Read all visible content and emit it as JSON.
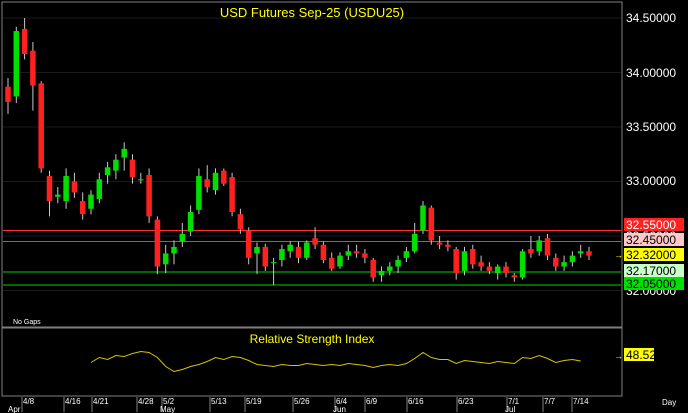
{
  "colors": {
    "background": "#000000",
    "frame": "#7f7f7f",
    "up": "#00e000",
    "down": "#ff2020",
    "wick": "#c8c8c8",
    "title": "#ffff00",
    "rsi_line": "#d7c300",
    "resistance_line": "#ff3333",
    "support_line": "#00d000"
  },
  "header": {
    "title": "USD Futures Sep-25 (USDU25)",
    "note": "No Gaps"
  },
  "price_axis": {
    "ticks": [
      "34.50000",
      "34.00000",
      "33.50000",
      "33.00000",
      "32.50000",
      "32.00000"
    ]
  },
  "level_labels": [
    {
      "text": "32.55000",
      "bg": "#ff2020",
      "fg": "#ffffff"
    },
    {
      "text": "32.45000",
      "bg": "#ffc8c8",
      "fg": "#000000"
    },
    {
      "text": "32.32000",
      "bg": "#ffff00",
      "fg": "#000000"
    },
    {
      "text": "32.17000",
      "bg": "#c8ffc8",
      "fg": "#000000"
    },
    {
      "text": "32.05000",
      "bg": "#00e000",
      "fg": "#000000"
    }
  ],
  "rsi": {
    "title": "Relative Strength Index",
    "value_label": "48.52"
  },
  "x_axis": {
    "day_ticks": [
      "4/8",
      "4/16",
      "4/21",
      "4/28",
      "5/2",
      "5/13",
      "5/19",
      "5/26",
      "6/4",
      "6/9",
      "6/16",
      "6/23",
      "7/1",
      "7/7",
      "7/14"
    ],
    "month_ticks": [
      "Apr",
      "May",
      "Jun",
      "Jul"
    ],
    "unit_label": "Day"
  },
  "chart_data": [
    {
      "type": "candlestick",
      "title": "USD Futures Sep-25 (USDU25)",
      "y_range": [
        31.76,
        34.67
      ],
      "y_ticks": [
        34.5,
        34.0,
        33.5,
        33.0,
        32.5,
        32.0
      ],
      "horizontal_lines": [
        32.55,
        32.45,
        32.17,
        32.05
      ],
      "last_price": 32.32,
      "candles": [
        [
          33.87,
          33.95,
          33.62,
          33.73
        ],
        [
          33.78,
          34.42,
          33.72,
          34.38
        ],
        [
          34.4,
          34.5,
          34.12,
          34.17
        ],
        [
          34.2,
          34.28,
          33.65,
          33.88
        ],
        [
          33.9,
          33.92,
          33.08,
          33.12
        ],
        [
          33.05,
          33.1,
          32.68,
          32.82
        ],
        [
          32.86,
          32.95,
          32.8,
          32.88
        ],
        [
          32.82,
          33.12,
          32.75,
          33.05
        ],
        [
          33.0,
          33.08,
          32.85,
          32.9
        ],
        [
          32.82,
          32.9,
          32.65,
          32.7
        ],
        [
          32.75,
          32.92,
          32.7,
          32.88
        ],
        [
          32.84,
          33.08,
          32.8,
          33.02
        ],
        [
          33.06,
          33.18,
          32.98,
          33.13
        ],
        [
          33.1,
          33.25,
          33.02,
          33.2
        ],
        [
          33.22,
          33.36,
          33.1,
          33.3
        ],
        [
          33.2,
          33.25,
          32.98,
          33.04
        ],
        [
          33.02,
          33.08,
          32.98,
          33.02
        ],
        [
          33.06,
          33.12,
          32.62,
          32.68
        ],
        [
          32.65,
          32.68,
          32.15,
          32.22
        ],
        [
          32.24,
          32.42,
          32.16,
          32.34
        ],
        [
          32.34,
          32.46,
          32.24,
          32.4
        ],
        [
          32.45,
          32.62,
          32.4,
          32.52
        ],
        [
          32.54,
          32.78,
          32.5,
          32.72
        ],
        [
          32.74,
          33.12,
          32.7,
          33.05
        ],
        [
          33.02,
          33.15,
          32.9,
          32.95
        ],
        [
          32.92,
          33.12,
          32.88,
          33.08
        ],
        [
          33.1,
          33.12,
          32.96,
          32.98
        ],
        [
          33.04,
          33.08,
          32.68,
          32.72
        ],
        [
          32.7,
          32.75,
          32.52,
          32.56
        ],
        [
          32.55,
          32.58,
          32.24,
          32.3
        ],
        [
          32.34,
          32.44,
          32.15,
          32.4
        ],
        [
          32.4,
          32.43,
          32.18,
          32.22
        ],
        [
          32.25,
          32.3,
          32.05,
          32.26
        ],
        [
          32.28,
          32.42,
          32.22,
          32.38
        ],
        [
          32.36,
          32.45,
          32.3,
          32.42
        ],
        [
          32.4,
          32.45,
          32.25,
          32.3
        ],
        [
          32.3,
          32.46,
          32.28,
          32.44
        ],
        [
          32.48,
          32.58,
          32.38,
          32.42
        ],
        [
          32.42,
          32.45,
          32.25,
          32.28
        ],
        [
          32.3,
          32.35,
          32.18,
          32.2
        ],
        [
          32.22,
          32.35,
          32.2,
          32.32
        ],
        [
          32.32,
          32.42,
          32.28,
          32.36
        ],
        [
          32.36,
          32.42,
          32.3,
          32.34
        ],
        [
          32.34,
          32.38,
          32.25,
          32.3
        ],
        [
          32.28,
          32.3,
          32.08,
          32.12
        ],
        [
          32.14,
          32.22,
          32.08,
          32.18
        ],
        [
          32.18,
          32.26,
          32.14,
          32.22
        ],
        [
          32.22,
          32.32,
          32.16,
          32.28
        ],
        [
          32.3,
          32.4,
          32.26,
          32.36
        ],
        [
          32.36,
          32.62,
          32.34,
          32.52
        ],
        [
          32.55,
          32.82,
          32.52,
          32.78
        ],
        [
          32.76,
          32.78,
          32.42,
          32.46
        ],
        [
          32.44,
          32.5,
          32.38,
          32.42
        ],
        [
          32.42,
          32.46,
          32.36,
          32.4
        ],
        [
          32.38,
          32.4,
          32.1,
          32.16
        ],
        [
          32.18,
          32.4,
          32.14,
          32.36
        ],
        [
          32.38,
          32.42,
          32.2,
          32.24
        ],
        [
          32.26,
          32.32,
          32.18,
          32.22
        ],
        [
          32.22,
          32.26,
          32.15,
          32.18
        ],
        [
          32.16,
          32.24,
          32.1,
          32.22
        ],
        [
          32.22,
          32.26,
          32.12,
          32.16
        ],
        [
          32.14,
          32.16,
          32.08,
          32.12
        ],
        [
          32.12,
          32.38,
          32.1,
          32.36
        ],
        [
          32.38,
          32.5,
          32.3,
          32.34
        ],
        [
          32.36,
          32.5,
          32.32,
          32.46
        ],
        [
          32.48,
          32.52,
          32.28,
          32.32
        ],
        [
          32.3,
          32.34,
          32.18,
          32.22
        ],
        [
          32.22,
          32.32,
          32.18,
          32.26
        ],
        [
          32.26,
          32.36,
          32.22,
          32.32
        ],
        [
          32.34,
          32.42,
          32.3,
          32.36
        ],
        [
          32.36,
          32.4,
          32.28,
          32.32
        ]
      ]
    },
    {
      "type": "line",
      "title": "Relative Strength Index",
      "y_range": [
        25,
        75
      ],
      "last_value": 48.52,
      "values": [
        null,
        null,
        null,
        null,
        null,
        null,
        null,
        null,
        null,
        null,
        47,
        52,
        50,
        54,
        53,
        56,
        58,
        57,
        52,
        43,
        38,
        40,
        43,
        45,
        48,
        52,
        50,
        53,
        52,
        49,
        45,
        44,
        43,
        45,
        44,
        44,
        46,
        45,
        44,
        45,
        44,
        46,
        45,
        44,
        42,
        44,
        45,
        44,
        46,
        51,
        57,
        52,
        50,
        50,
        46,
        49,
        48,
        47,
        46,
        48,
        47,
        46,
        52,
        51,
        54,
        51,
        47,
        49,
        50,
        48.52,
        null
      ]
    }
  ]
}
